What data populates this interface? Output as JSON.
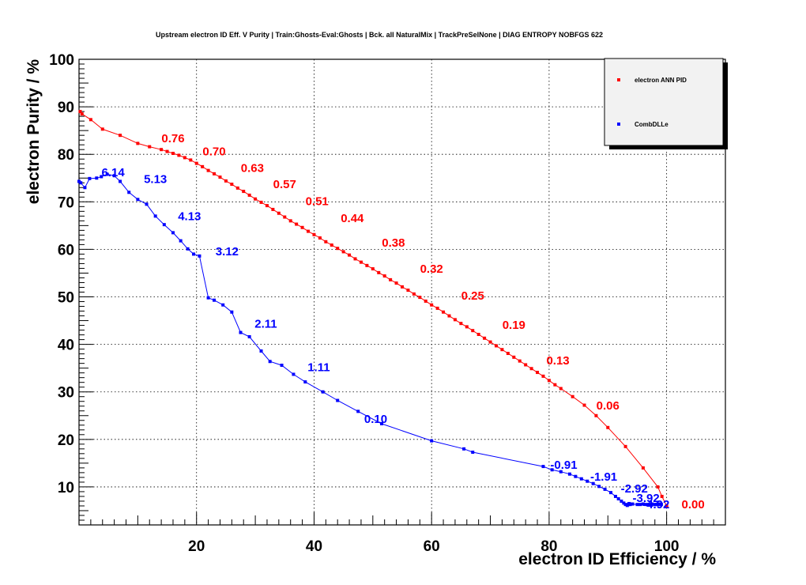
{
  "chart_data": {
    "type": "line",
    "title": "Upstream electron ID Eff. V Purity | Train:Ghosts-Eval:Ghosts | Bck. all NaturalMix | TrackPreSelNone | DIAG ENTROPY NOBFGS 622",
    "xlabel": "electron ID Efficiency / %",
    "ylabel": "electron Purity / %",
    "xlim": [
      0,
      110
    ],
    "ylim": [
      2,
      100
    ],
    "xticks": [
      20,
      40,
      60,
      80,
      100
    ],
    "yticks": [
      10,
      20,
      30,
      40,
      50,
      60,
      70,
      80,
      90,
      100
    ],
    "grid": true,
    "legend_position": "top-right",
    "series": [
      {
        "name": "electron ANN PID",
        "color": "#ff0000",
        "x": [
          0.2,
          0.5,
          2,
          4,
          7,
          10,
          12,
          14,
          15,
          16,
          17,
          18,
          19,
          20,
          21,
          22,
          23,
          24,
          25,
          26,
          27,
          28,
          29,
          30,
          31,
          32,
          33,
          34,
          35,
          36,
          37,
          38,
          39,
          40,
          41,
          42,
          43,
          44,
          45,
          46,
          47,
          48,
          49,
          50,
          51,
          52,
          53,
          54,
          55,
          56,
          57,
          58,
          59,
          60,
          61,
          62,
          63,
          64,
          65,
          66,
          67,
          68,
          69,
          70,
          71,
          72,
          73,
          74,
          75,
          76,
          77,
          78,
          79,
          80,
          81,
          82,
          84,
          86,
          88,
          90,
          93,
          96,
          98.5,
          99.2,
          100
        ],
        "y": [
          89,
          88.5,
          87.3,
          85.3,
          84,
          82.3,
          81.6,
          81,
          80.6,
          80.2,
          79.8,
          79.3,
          78.8,
          78.1,
          77.4,
          76.6,
          75.9,
          75.2,
          74.4,
          73.7,
          72.9,
          72.2,
          71.4,
          70.6,
          69.9,
          69.2,
          68.4,
          67.6,
          66.8,
          66.0,
          65.3,
          64.6,
          63.8,
          63.1,
          62.4,
          61.6,
          60.9,
          60.2,
          59.5,
          58.8,
          58.0,
          57.3,
          56.6,
          55.9,
          55.1,
          54.4,
          53.6,
          52.9,
          52.1,
          51.4,
          50.6,
          49.9,
          49.1,
          48.3,
          47.6,
          46.8,
          46.0,
          45.2,
          44.4,
          43.7,
          42.9,
          42.1,
          41.3,
          40.5,
          39.7,
          38.9,
          38.1,
          37.3,
          36.5,
          35.7,
          34.9,
          34.1,
          33.3,
          32.4,
          31.5,
          30.7,
          29.0,
          27.2,
          25.0,
          22.5,
          18.5,
          14.0,
          10.0,
          8.0,
          6.0
        ],
        "labels": [
          {
            "text": "0.76",
            "x": 16,
            "y": 82.5
          },
          {
            "text": "0.70",
            "x": 23,
            "y": 79.8
          },
          {
            "text": "0.63",
            "x": 29.5,
            "y": 76.3
          },
          {
            "text": "0.57",
            "x": 35,
            "y": 72.9
          },
          {
            "text": "0.51",
            "x": 40.5,
            "y": 69.3
          },
          {
            "text": "0.44",
            "x": 46.5,
            "y": 65.7
          },
          {
            "text": "0.38",
            "x": 53.5,
            "y": 60.6
          },
          {
            "text": "0.32",
            "x": 60,
            "y": 55.1
          },
          {
            "text": "0.25",
            "x": 67,
            "y": 49.4
          },
          {
            "text": "0.19",
            "x": 74,
            "y": 43.3
          },
          {
            "text": "0.13",
            "x": 81.5,
            "y": 35.8
          },
          {
            "text": "0.06",
            "x": 90,
            "y": 26.3
          },
          {
            "text": "0.00",
            "x": 104.5,
            "y": 5.5
          }
        ]
      },
      {
        "name": "CombDLLe",
        "color": "#0000ff",
        "x": [
          0,
          0.3,
          1,
          1.8,
          3,
          3.8,
          4.8,
          6,
          7,
          8.5,
          10,
          11.5,
          13,
          14.5,
          16,
          17.3,
          18.5,
          19.5,
          20.5,
          22,
          23,
          24.5,
          26,
          27.5,
          29,
          31,
          32.5,
          34.5,
          36.5,
          38.5,
          41.5,
          44,
          47.5,
          51.5,
          60,
          65.5,
          67,
          79,
          80.5,
          82,
          83.5,
          84.5,
          85.5,
          86.5,
          87.5,
          88.5,
          89.5,
          90.5,
          91.3,
          91.8,
          92.3,
          92.7,
          93,
          93.3,
          93.5,
          93.6,
          93.7,
          93.8,
          94.2,
          95,
          95.5,
          96,
          96.5,
          97,
          97.5,
          98,
          98.3,
          98.5,
          98.7,
          98.9,
          99,
          99.1
        ],
        "y": [
          74.3,
          74.0,
          73.0,
          74.9,
          75.0,
          75.3,
          75.8,
          75.5,
          74.3,
          72.0,
          70.5,
          69.5,
          67.0,
          65.2,
          63.5,
          61.8,
          60.1,
          59.0,
          58.6,
          49.8,
          49.3,
          48.3,
          46.8,
          42.5,
          41.6,
          38.6,
          36.4,
          35.6,
          33.7,
          32.1,
          30.0,
          28.2,
          25.9,
          23.3,
          19.7,
          18.0,
          17.3,
          14.3,
          13.6,
          13.2,
          12.7,
          12.2,
          11.7,
          11.2,
          10.7,
          10.1,
          9.5,
          8.8,
          8.0,
          7.5,
          7.0,
          6.6,
          6.3,
          6.1,
          6.3,
          6.5,
          6.4,
          6.3,
          6.4,
          6.3,
          6.3,
          6.4,
          6.3,
          6.3,
          6.4,
          6.3,
          6.3,
          6.4,
          6.3,
          6.3,
          6.4,
          6.3
        ],
        "labels": [
          {
            "text": "6.14",
            "x": 5.8,
            "y": 75.4
          },
          {
            "text": "5.13",
            "x": 13,
            "y": 74.0
          },
          {
            "text": "4.13",
            "x": 18.8,
            "y": 66.1
          },
          {
            "text": "3.12",
            "x": 25.2,
            "y": 58.7
          },
          {
            "text": "2.11",
            "x": 31.8,
            "y": 43.5
          },
          {
            "text": "1.11",
            "x": 40.8,
            "y": 34.4
          },
          {
            "text": "0.10",
            "x": 50.5,
            "y": 23.5
          },
          {
            "text": "-0.91",
            "x": 82.5,
            "y": 13.8
          },
          {
            "text": "-1.91",
            "x": 89.3,
            "y": 11.3
          },
          {
            "text": "-2.92",
            "x": 94.5,
            "y": 8.8
          },
          {
            "text": "-3.92",
            "x": 96.5,
            "y": 6.8
          },
          {
            "text": "-4.92",
            "x": 98.2,
            "y": 5.5
          }
        ]
      }
    ]
  }
}
